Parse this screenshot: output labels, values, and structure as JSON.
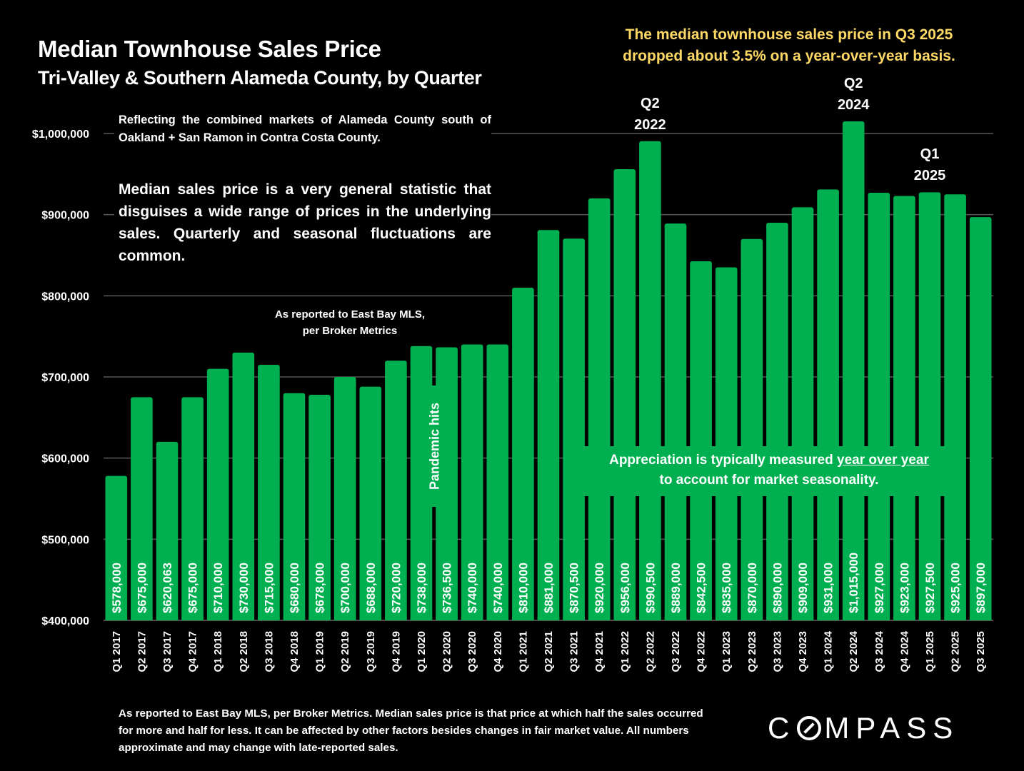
{
  "header": {
    "title": "Median Townhouse Sales Price",
    "subtitle": "Tri-Valley & Southern Alameda County, by Quarter",
    "headline_line1": "The median townhouse sales price in Q3 2025",
    "headline_line2": "dropped about 3.5% on a year-over-year basis."
  },
  "notes": {
    "coverage": "Reflecting the combined markets of Alameda County south of Oakland + San Ramon in Contra Costa County.",
    "median_caveat": "Median sales price is a very general statistic that disguises a wide range of prices in the underlying sales. Quarterly and seasonal fluctuations are common.",
    "source_line1": "As reported to East Bay MLS,",
    "source_line2": "per Broker Metrics",
    "pandemic": "Pandemic hits",
    "appreciation_pre": "Appreciation is typically measured ",
    "appreciation_underline": "year over year",
    "appreciation_post": "to account for market seasonality."
  },
  "peak_labels": [
    {
      "category": "Q2 2022",
      "line1": "Q2",
      "line2": "2022"
    },
    {
      "category": "Q2 2024",
      "line1": "Q2",
      "line2": "2024"
    },
    {
      "category": "Q1 2025",
      "line1": "Q1",
      "line2": "2025"
    }
  ],
  "footnote": "As reported to East Bay MLS, per Broker Metrics. Median sales price is that price at which half the sales occurred for more and half for less. It can be affected by other factors besides changes in fair market value. All numbers approximate and may change with late-reported sales.",
  "brand": {
    "logo_pre": "C",
    "logo_post": "MPASS"
  },
  "colors": {
    "bar": "#00b050",
    "headline": "#ffd966",
    "background": "#000000",
    "grid": "#595959"
  },
  "chart_data": {
    "type": "bar",
    "title": "Median Townhouse Sales Price",
    "subtitle": "Tri-Valley & Southern Alameda County, by Quarter",
    "xlabel": "",
    "ylabel": "",
    "ylim": [
      400000,
      1000000
    ],
    "yticks": [
      400000,
      500000,
      600000,
      700000,
      800000,
      900000,
      1000000
    ],
    "ytick_labels": [
      "$400,000",
      "$500,000",
      "$600,000",
      "$700,000",
      "$800,000",
      "$900,000",
      "$1,000,000"
    ],
    "grid": true,
    "categories": [
      "Q1 2017",
      "Q2 2017",
      "Q3 2017",
      "Q4 2017",
      "Q1 2018",
      "Q2 2018",
      "Q3 2018",
      "Q4 2018",
      "Q1 2019",
      "Q2 2019",
      "Q3 2019",
      "Q4 2019",
      "Q1 2020",
      "Q2 2020",
      "Q3 2020",
      "Q4 2020",
      "Q1 2021",
      "Q2 2021",
      "Q3 2021",
      "Q4 2021",
      "Q1 2022",
      "Q2 2022",
      "Q3 2022",
      "Q4 2022",
      "Q1 2023",
      "Q2 2023",
      "Q3 2023",
      "Q4 2023",
      "Q1 2024",
      "Q2 2024",
      "Q3 2024",
      "Q4 2024",
      "Q1 2025",
      "Q2 2025",
      "Q3 2025"
    ],
    "values": [
      578000,
      675000,
      620063,
      675000,
      710000,
      730000,
      715000,
      680000,
      678000,
      700000,
      688000,
      720000,
      738000,
      736500,
      740000,
      740000,
      810000,
      881000,
      870500,
      920000,
      956000,
      990500,
      889000,
      842500,
      835000,
      870000,
      890000,
      909000,
      931000,
      1015000,
      927000,
      923000,
      927500,
      925000,
      897000
    ],
    "data_labels": [
      "$578,000",
      "$675,000",
      "$620,063",
      "$675,000",
      "$710,000",
      "$730,000",
      "$715,000",
      "$680,000",
      "$678,000",
      "$700,000",
      "$688,000",
      "$720,000",
      "$738,000",
      "$736,500",
      "$740,000",
      "$740,000",
      "$810,000",
      "$881,000",
      "$870,500",
      "$920,000",
      "$956,000",
      "$990,500",
      "$889,000",
      "$842,500",
      "$835,000",
      "$870,000",
      "$890,000",
      "$909,000",
      "$931,000",
      "$1,015,000",
      "$927,000",
      "$923,000",
      "$927,500",
      "$925,000",
      "$897,000"
    ]
  }
}
